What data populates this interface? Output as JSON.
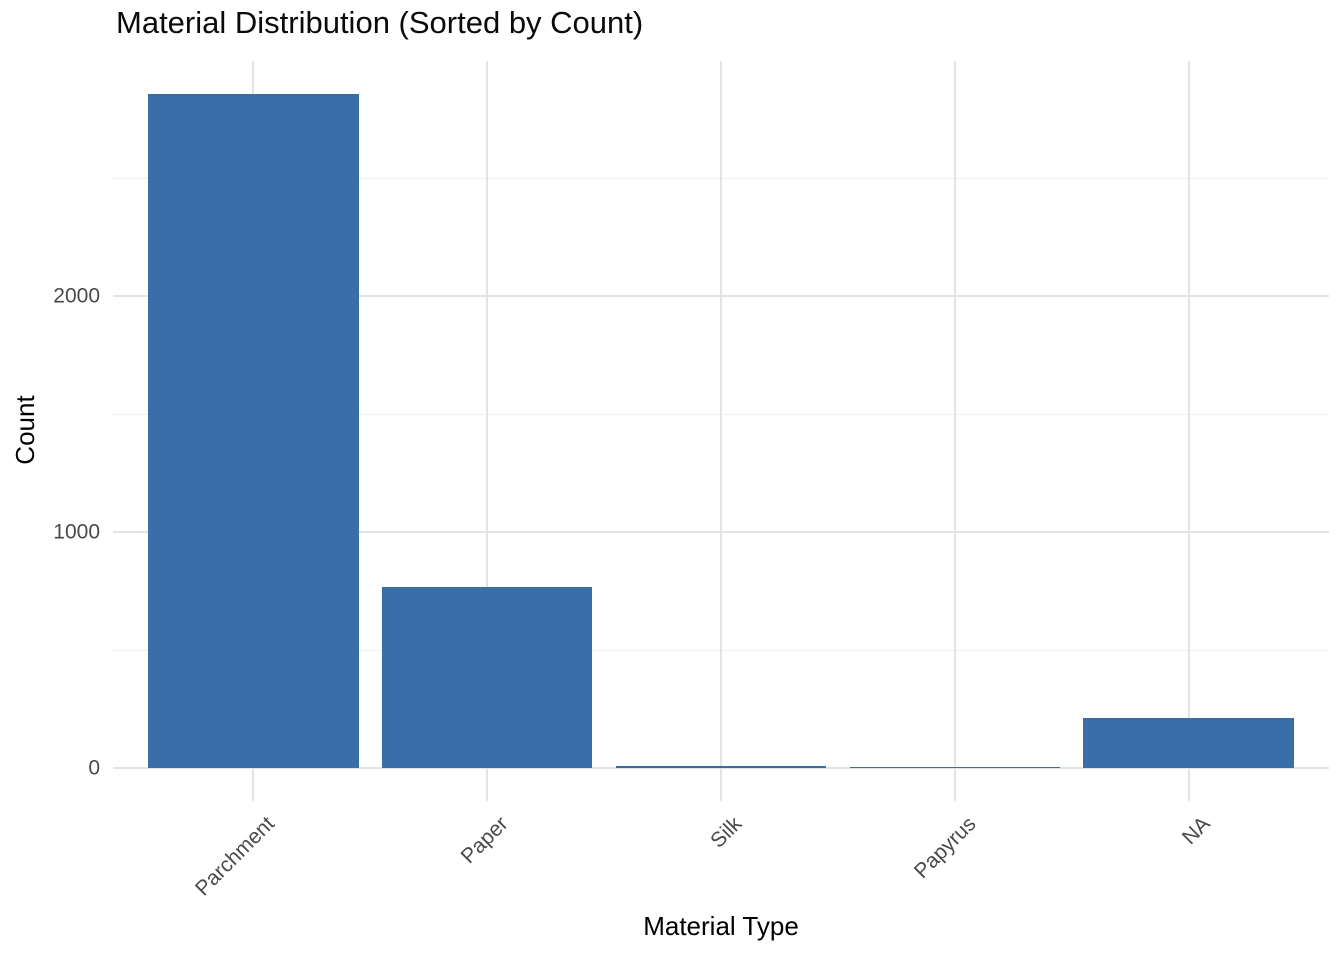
{
  "chart_data": {
    "type": "bar",
    "title": "Material Distribution (Sorted by Count)",
    "xlabel": "Material Type",
    "ylabel": "Count",
    "categories": [
      "Parchment",
      "Paper",
      "Silk",
      "Papyrus",
      "NA"
    ],
    "values": [
      2858,
      768,
      8,
      6,
      211
    ],
    "y_major_ticks": [
      0,
      1000,
      2000
    ],
    "y_minor_ticks": [
      500,
      1500,
      2500
    ],
    "ylim": [
      0,
      3000
    ],
    "grid": "major horizontal and vertical at category centers, minor horizontal at 500 intervals",
    "legend": "none",
    "colors": {
      "bar_fill": "#3A6EA8",
      "grid_major": "#E4E4E4",
      "grid_minor": "#F0F0F0",
      "tick_label": "#4A4A4A",
      "title_text": "#0A0A0A",
      "background": "#FFFFFF"
    }
  }
}
